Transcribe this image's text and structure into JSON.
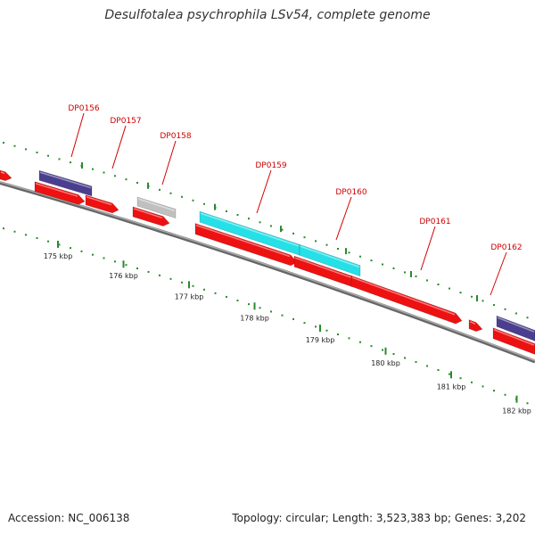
{
  "title": "Desulfotalea psychrophila LSv54, complete genome",
  "footer": {
    "accession": "Accession: NC_006138",
    "stats": "Topology: circular; Length: 3,523,383 bp; Genes: 3,202"
  },
  "colors": {
    "forward_cds": "#ee1111",
    "reverse_cds": "#4a3f8f",
    "rna": "#26e0e8",
    "pseudo": "#c0c0c0",
    "backbone": "#888888",
    "tick": "#2a8a2a",
    "label": "#d00000"
  },
  "scale": {
    "ticks": [
      {
        "label": "175 kbp",
        "pos": 175
      },
      {
        "label": "176 kbp",
        "pos": 176
      },
      {
        "label": "177 kbp",
        "pos": 177
      },
      {
        "label": "178 kbp",
        "pos": 178
      },
      {
        "label": "179 kbp",
        "pos": 179
      },
      {
        "label": "180 kbp",
        "pos": 180
      },
      {
        "label": "181 kbp",
        "pos": 181
      },
      {
        "label": "182 kbp",
        "pos": 182
      }
    ]
  },
  "genes": [
    {
      "label": "DP0156"
    },
    {
      "label": "DP0157"
    },
    {
      "label": "DP0158"
    },
    {
      "label": "DP0159"
    },
    {
      "label": "DP0160"
    },
    {
      "label": "DP0161"
    },
    {
      "label": "DP0162"
    }
  ]
}
